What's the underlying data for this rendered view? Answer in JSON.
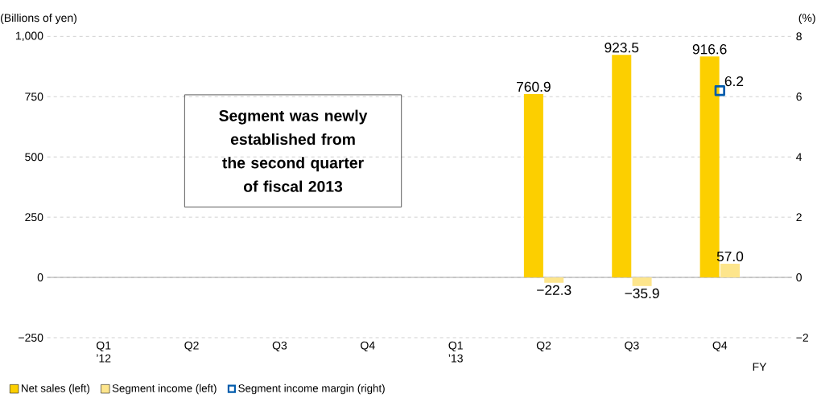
{
  "chart_data": {
    "type": "bar",
    "categories": [
      "Q1 ’12",
      "Q2",
      "Q3",
      "Q4",
      "Q1 ’13",
      "Q2",
      "Q3",
      "Q4"
    ],
    "xlabel": "FY",
    "ylabel": "(Billions of yen)",
    "y2label": "(%)",
    "series": [
      {
        "name": "Net sales (left)",
        "color": "#fccf00",
        "values": [
          null,
          null,
          null,
          null,
          null,
          760.9,
          923.5,
          916.6
        ],
        "value_labels": [
          null,
          null,
          null,
          null,
          null,
          "760.9",
          "923.5",
          "916.6"
        ]
      },
      {
        "name": "Segment income (left)",
        "color": "#fde58c",
        "values": [
          null,
          null,
          null,
          null,
          null,
          -22.3,
          -35.9,
          57.0
        ],
        "value_labels": [
          null,
          null,
          null,
          null,
          null,
          "−22.3",
          "−35.9",
          "57.0"
        ]
      },
      {
        "name": "Segment income margin (right)",
        "type": "line",
        "axis": "y2",
        "marker": "square",
        "color": "#005bac",
        "values": [
          null,
          null,
          null,
          null,
          null,
          null,
          null,
          6.2
        ],
        "value_labels": [
          null,
          null,
          null,
          null,
          null,
          null,
          null,
          "6.2"
        ]
      }
    ],
    "ylim": [
      -250,
      1000
    ],
    "yticks": [
      {
        "value": -250,
        "label": "−250"
      },
      0,
      250,
      500,
      750,
      {
        "value": 1000,
        "label": "1,000"
      }
    ],
    "y2lim": [
      -2,
      8
    ],
    "y2ticks": [
      {
        "value": -2,
        "label": "−2"
      },
      0,
      2,
      4,
      6,
      8
    ],
    "grid": "y",
    "legend": "bottom left",
    "annotations": [
      "Segment was newly established from the second quarter of fiscal 2013"
    ]
  }
}
